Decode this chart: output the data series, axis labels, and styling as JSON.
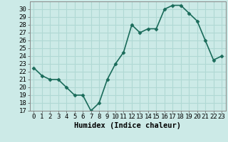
{
  "x": [
    0,
    1,
    2,
    3,
    4,
    5,
    6,
    7,
    8,
    9,
    10,
    11,
    12,
    13,
    14,
    15,
    16,
    17,
    18,
    19,
    20,
    21,
    22,
    23
  ],
  "y": [
    22.5,
    21.5,
    21.0,
    21.0,
    20.0,
    19.0,
    19.0,
    17.0,
    18.0,
    21.0,
    23.0,
    24.5,
    28.0,
    27.0,
    27.5,
    27.5,
    30.0,
    30.5,
    30.5,
    29.5,
    28.5,
    26.0,
    23.5,
    24.0
  ],
  "line_color": "#1a6b5a",
  "marker": "D",
  "marker_size": 2.5,
  "bg_color": "#cceae7",
  "grid_color": "#b0d8d4",
  "xlabel": "Humidex (Indice chaleur)",
  "xlim": [
    -0.5,
    23.5
  ],
  "ylim": [
    17,
    31
  ],
  "yticks": [
    17,
    18,
    19,
    20,
    21,
    22,
    23,
    24,
    25,
    26,
    27,
    28,
    29,
    30
  ],
  "xticks": [
    0,
    1,
    2,
    3,
    4,
    5,
    6,
    7,
    8,
    9,
    10,
    11,
    12,
    13,
    14,
    15,
    16,
    17,
    18,
    19,
    20,
    21,
    22,
    23
  ],
  "tick_label_fontsize": 6.5,
  "xlabel_fontsize": 7.5,
  "line_width": 1.2
}
